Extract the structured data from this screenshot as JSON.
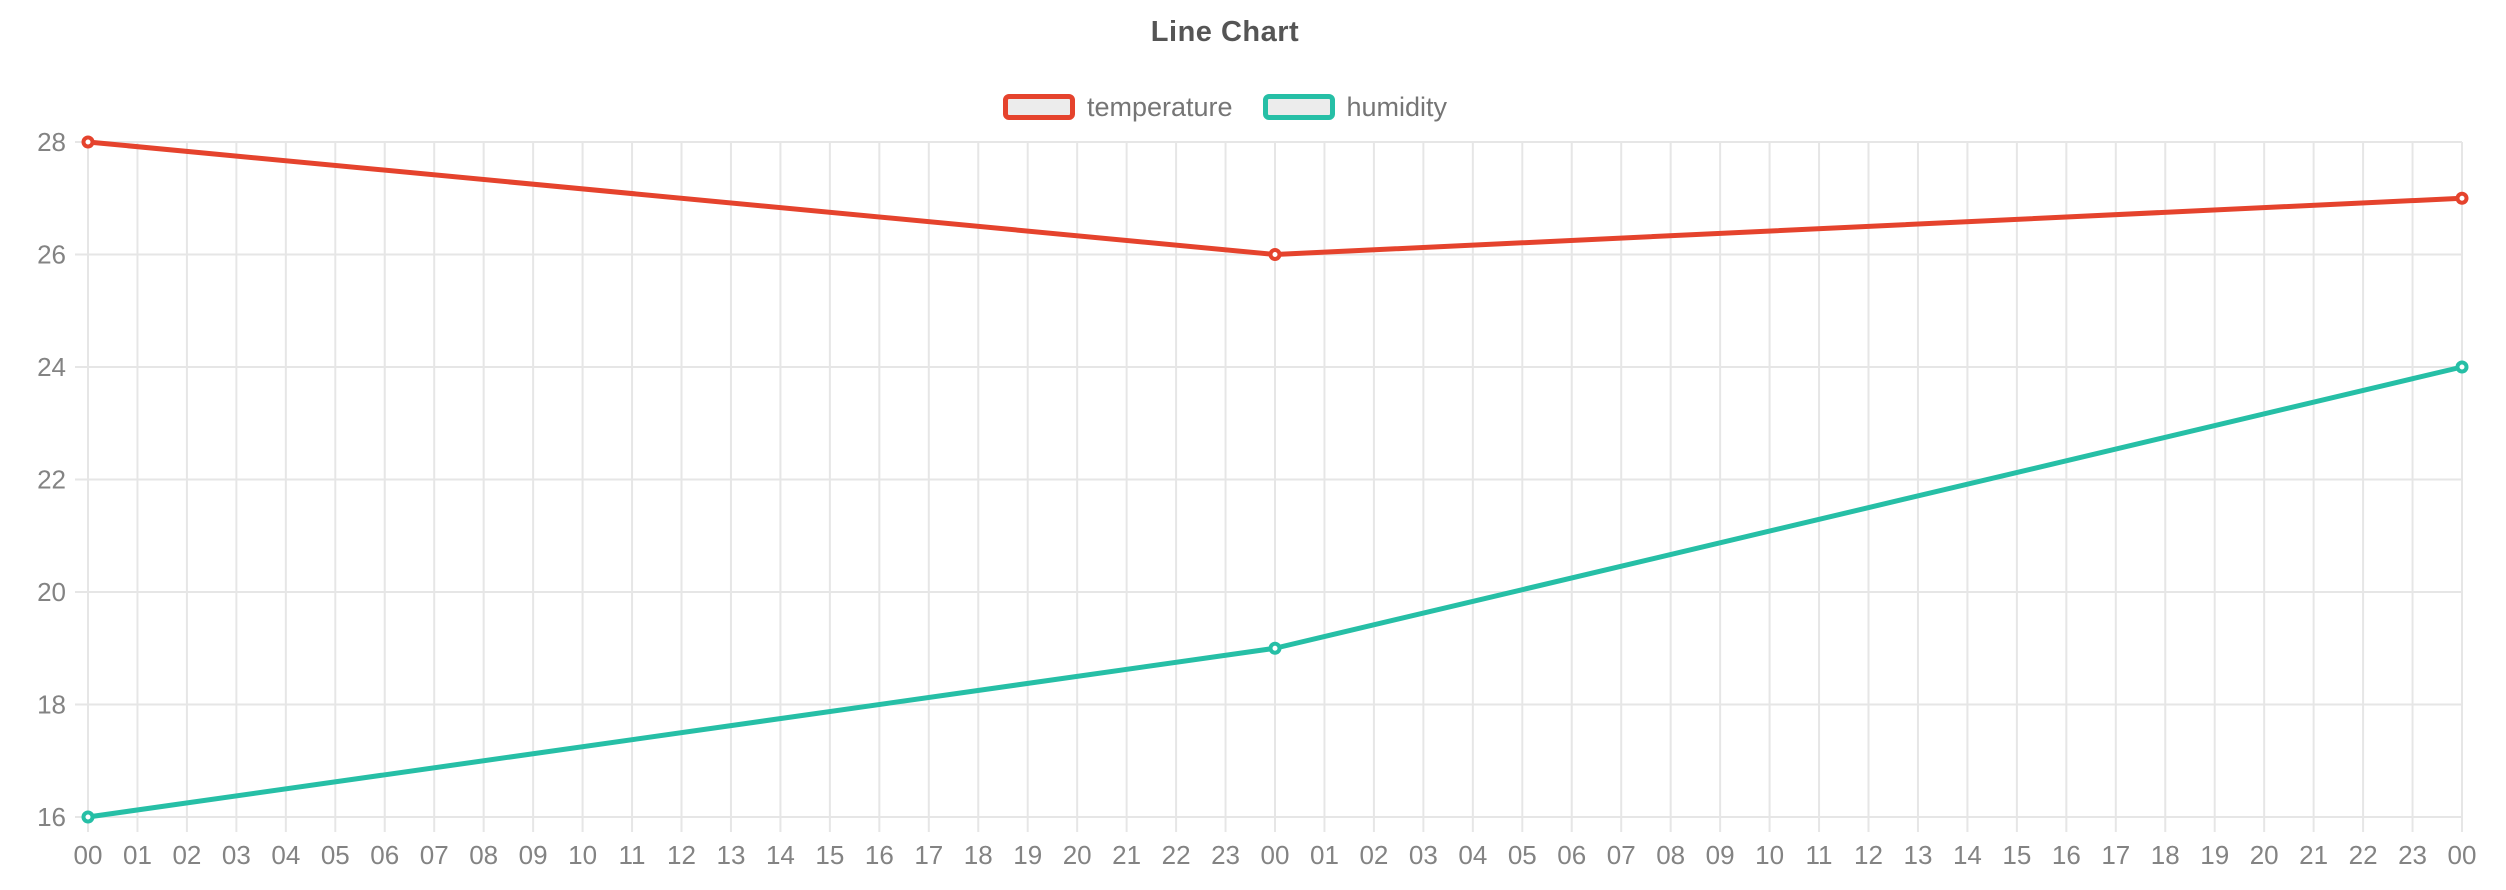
{
  "chart_data": {
    "type": "line",
    "title": "Line Chart",
    "x_labels": [
      "00",
      "01",
      "02",
      "03",
      "04",
      "05",
      "06",
      "07",
      "08",
      "09",
      "10",
      "11",
      "12",
      "13",
      "14",
      "15",
      "16",
      "17",
      "18",
      "19",
      "20",
      "21",
      "22",
      "23",
      "00",
      "01",
      "02",
      "03",
      "04",
      "05",
      "06",
      "07",
      "08",
      "09",
      "10",
      "11",
      "12",
      "13",
      "14",
      "15",
      "16",
      "17",
      "18",
      "19",
      "20",
      "21",
      "22",
      "23",
      "00"
    ],
    "xlim": [
      0,
      48
    ],
    "ylim": [
      16,
      28
    ],
    "y_ticks": [
      16,
      18,
      20,
      22,
      24,
      26,
      28
    ],
    "grid": true,
    "legend_position": "top",
    "series": [
      {
        "name": "temperature",
        "color": "#e5432d",
        "points": [
          {
            "x": 0,
            "y": 28
          },
          {
            "x": 24,
            "y": 26
          },
          {
            "x": 48,
            "y": 27
          }
        ]
      },
      {
        "name": "humidity",
        "color": "#26bfa6",
        "points": [
          {
            "x": 0,
            "y": 16
          },
          {
            "x": 24,
            "y": 19
          },
          {
            "x": 48,
            "y": 24
          }
        ]
      }
    ],
    "colors": {
      "background": "#ffffff",
      "grid": "#e6e6e6",
      "axis_text": "#838383",
      "title_text": "#555555",
      "legend_text": "#757575",
      "legend_swatch_fill": "#ececec",
      "marker_fill": "#ffffff"
    }
  }
}
